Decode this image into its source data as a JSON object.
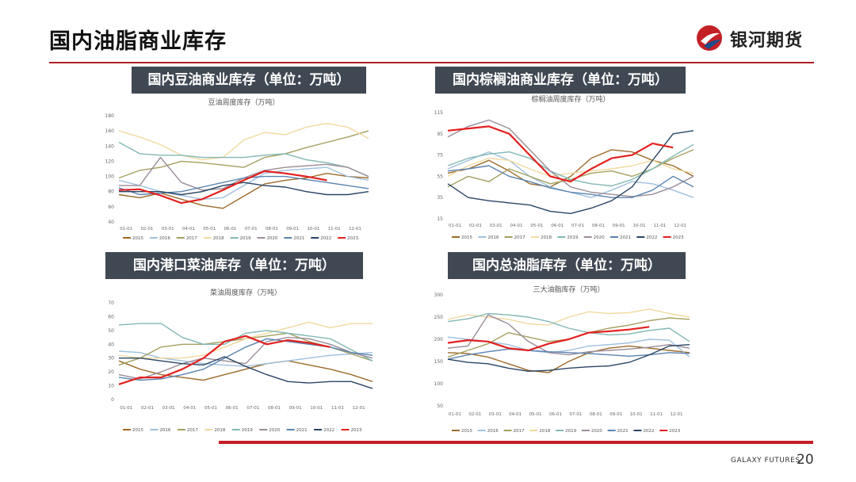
{
  "page": {
    "title": "国内油脂商业库存",
    "brand_name": "银河期货",
    "footer_brand": "GALAXY FUTURES",
    "page_number": "20"
  },
  "colors": {
    "accent": "#c32025",
    "header_bg": "#3f4853",
    "series": {
      "2015": "#9c6b2a",
      "2016": "#9fc0de",
      "2017": "#a4a060",
      "2018": "#f1d9a0",
      "2019": "#82b8b3",
      "2020": "#9a8c98",
      "2021": "#5b84b2",
      "2022": "#2a4565",
      "2023": "#e32020"
    }
  },
  "x_ticks": [
    "01-01",
    "02-01",
    "03-01",
    "04-01",
    "05-01",
    "06-01",
    "07-01",
    "08-01",
    "09-01",
    "10-01",
    "11-01",
    "12-01"
  ],
  "legend": [
    "2015",
    "2016",
    "2017",
    "2018",
    "2019",
    "2020",
    "2021",
    "2022",
    "2023"
  ],
  "chart_data": [
    {
      "type": "line",
      "header": "国内豆油商业库存（单位：万吨）",
      "title": "豆油周度库存（万吨）",
      "ylim": [
        40,
        180
      ],
      "yticks": [
        40,
        60,
        80,
        100,
        120,
        140,
        160,
        180
      ],
      "grid": false,
      "legend_position": "bottom",
      "series": [
        {
          "name": "2015",
          "values": [
            76,
            72,
            78,
            70,
            62,
            58,
            74,
            90,
            95,
            98,
            104,
            100,
            98
          ]
        },
        {
          "name": "2016",
          "values": [
            95,
            88,
            80,
            75,
            70,
            72,
            88,
            104,
            108,
            110,
            112,
            100,
            95
          ]
        },
        {
          "name": "2017",
          "values": [
            98,
            108,
            112,
            120,
            118,
            115,
            112,
            125,
            130,
            138,
            145,
            152,
            160
          ]
        },
        {
          "name": "2018",
          "values": [
            160,
            152,
            142,
            128,
            122,
            125,
            148,
            158,
            155,
            165,
            170,
            165,
            150
          ]
        },
        {
          "name": "2019",
          "values": [
            145,
            130,
            128,
            128,
            125,
            125,
            125,
            128,
            130,
            122,
            118,
            112,
            100
          ]
        },
        {
          "name": "2020",
          "values": [
            88,
            88,
            125,
            92,
            82,
            84,
            98,
            108,
            112,
            114,
            116,
            112,
            100
          ]
        },
        {
          "name": "2021",
          "values": [
            85,
            76,
            78,
            80,
            86,
            92,
            98,
            100,
            100,
            96,
            92,
            88,
            84
          ]
        },
        {
          "name": "2022",
          "values": [
            80,
            80,
            80,
            76,
            80,
            88,
            92,
            88,
            86,
            80,
            76,
            76,
            80
          ]
        },
        {
          "name": "2023",
          "values": [
            82,
            83,
            75,
            65,
            70,
            82,
            95,
            107,
            104,
            100,
            95
          ]
        }
      ]
    },
    {
      "type": "line",
      "header": "国内棕榈油商业库存（单位：万吨）",
      "title": "棕榈油周度库存（万吨）",
      "ylim": [
        15,
        115
      ],
      "yticks": [
        15,
        35,
        55,
        75,
        95,
        115
      ],
      "grid": false,
      "legend_position": "bottom",
      "series": [
        {
          "name": "2015",
          "values": [
            58,
            62,
            70,
            60,
            48,
            45,
            55,
            72,
            80,
            78,
            70,
            65,
            55
          ]
        },
        {
          "name": "2016",
          "values": [
            62,
            70,
            78,
            70,
            55,
            45,
            40,
            35,
            42,
            50,
            48,
            42,
            35
          ]
        },
        {
          "name": "2017",
          "values": [
            45,
            55,
            50,
            62,
            55,
            48,
            52,
            58,
            60,
            55,
            62,
            72,
            80
          ]
        },
        {
          "name": "2018",
          "values": [
            55,
            65,
            72,
            70,
            62,
            55,
            58,
            60,
            62,
            65,
            70,
            62,
            58
          ]
        },
        {
          "name": "2019",
          "values": [
            65,
            72,
            76,
            78,
            72,
            60,
            52,
            48,
            46,
            52,
            62,
            74,
            85
          ]
        },
        {
          "name": "2020",
          "values": [
            92,
            102,
            108,
            100,
            80,
            60,
            45,
            40,
            38,
            36,
            38,
            45,
            55
          ]
        },
        {
          "name": "2021",
          "values": [
            60,
            62,
            65,
            55,
            50,
            44,
            40,
            38,
            35,
            35,
            42,
            55,
            45
          ]
        },
        {
          "name": "2022",
          "values": [
            48,
            35,
            32,
            30,
            28,
            22,
            20,
            25,
            32,
            45,
            70,
            95,
            98
          ]
        },
        {
          "name": "2023",
          "values": [
            98,
            100,
            102,
            95,
            75,
            55,
            50,
            62,
            72,
            75,
            86,
            82
          ]
        }
      ]
    },
    {
      "type": "line",
      "header": "国内港口菜油库存（单位：万吨）",
      "title": "菜油周度库存（万吨）",
      "ylim": [
        0,
        70
      ],
      "yticks": [
        0,
        10,
        20,
        30,
        40,
        50,
        60,
        70
      ],
      "grid": false,
      "legend_position": "bottom",
      "series": [
        {
          "name": "2015",
          "values": [
            28,
            22,
            18,
            16,
            14,
            18,
            22,
            26,
            28,
            25,
            22,
            18,
            13
          ]
        },
        {
          "name": "2016",
          "values": [
            35,
            34,
            30,
            28,
            26,
            25,
            24,
            26,
            28,
            30,
            32,
            33,
            34
          ]
        },
        {
          "name": "2017",
          "values": [
            25,
            30,
            38,
            40,
            40,
            42,
            44,
            46,
            48,
            42,
            38,
            33,
            28
          ]
        },
        {
          "name": "2018",
          "values": [
            32,
            30,
            30,
            30,
            32,
            38,
            44,
            48,
            52,
            56,
            52,
            55,
            55
          ]
        },
        {
          "name": "2019",
          "values": [
            54,
            55,
            55,
            45,
            40,
            40,
            48,
            50,
            48,
            46,
            44,
            36,
            28
          ]
        },
        {
          "name": "2020",
          "values": [
            18,
            15,
            20,
            26,
            30,
            28,
            26,
            42,
            45,
            44,
            40,
            34,
            30
          ]
        },
        {
          "name": "2021",
          "values": [
            16,
            14,
            15,
            18,
            22,
            30,
            38,
            44,
            42,
            40,
            38,
            34,
            32
          ]
        },
        {
          "name": "2022",
          "values": [
            30,
            30,
            28,
            26,
            25,
            31,
            24,
            18,
            13,
            12,
            13,
            13,
            8
          ]
        },
        {
          "name": "2023",
          "values": [
            11,
            16,
            16,
            22,
            30,
            42,
            46,
            40,
            43,
            41,
            38
          ]
        }
      ]
    },
    {
      "type": "line",
      "header": "国内总油脂库存（单位：万吨）",
      "title": "三大油脂库存（万吨）",
      "ylim": [
        50,
        300
      ],
      "yticks": [
        50,
        100,
        150,
        200,
        250,
        300
      ],
      "grid": false,
      "legend_position": "bottom",
      "series": [
        {
          "name": "2015",
          "values": [
            170,
            168,
            160,
            145,
            130,
            125,
            150,
            170,
            180,
            185,
            180,
            175,
            170
          ]
        },
        {
          "name": "2016",
          "values": [
            205,
            200,
            195,
            188,
            175,
            170,
            175,
            185,
            188,
            192,
            200,
            198,
            160
          ]
        },
        {
          "name": "2017",
          "values": [
            160,
            175,
            190,
            215,
            205,
            195,
            200,
            215,
            225,
            232,
            242,
            248,
            245
          ]
        },
        {
          "name": "2018",
          "values": [
            245,
            255,
            250,
            245,
            235,
            232,
            250,
            262,
            258,
            260,
            268,
            258,
            250
          ]
        },
        {
          "name": "2019",
          "values": [
            240,
            246,
            258,
            255,
            250,
            240,
            225,
            215,
            210,
            212,
            220,
            225,
            195
          ]
        },
        {
          "name": "2020",
          "values": [
            180,
            185,
            255,
            235,
            195,
            170,
            165,
            172,
            175,
            178,
            182,
            188,
            180
          ]
        },
        {
          "name": "2021",
          "values": [
            155,
            165,
            172,
            178,
            175,
            172,
            170,
            168,
            165,
            162,
            165,
            170,
            168
          ]
        },
        {
          "name": "2022",
          "values": [
            155,
            148,
            145,
            135,
            128,
            130,
            135,
            138,
            140,
            148,
            165,
            185,
            188
          ]
        },
        {
          "name": "2023",
          "values": [
            192,
            198,
            195,
            180,
            175,
            190,
            200,
            215,
            218,
            222,
            228
          ]
        }
      ]
    }
  ]
}
